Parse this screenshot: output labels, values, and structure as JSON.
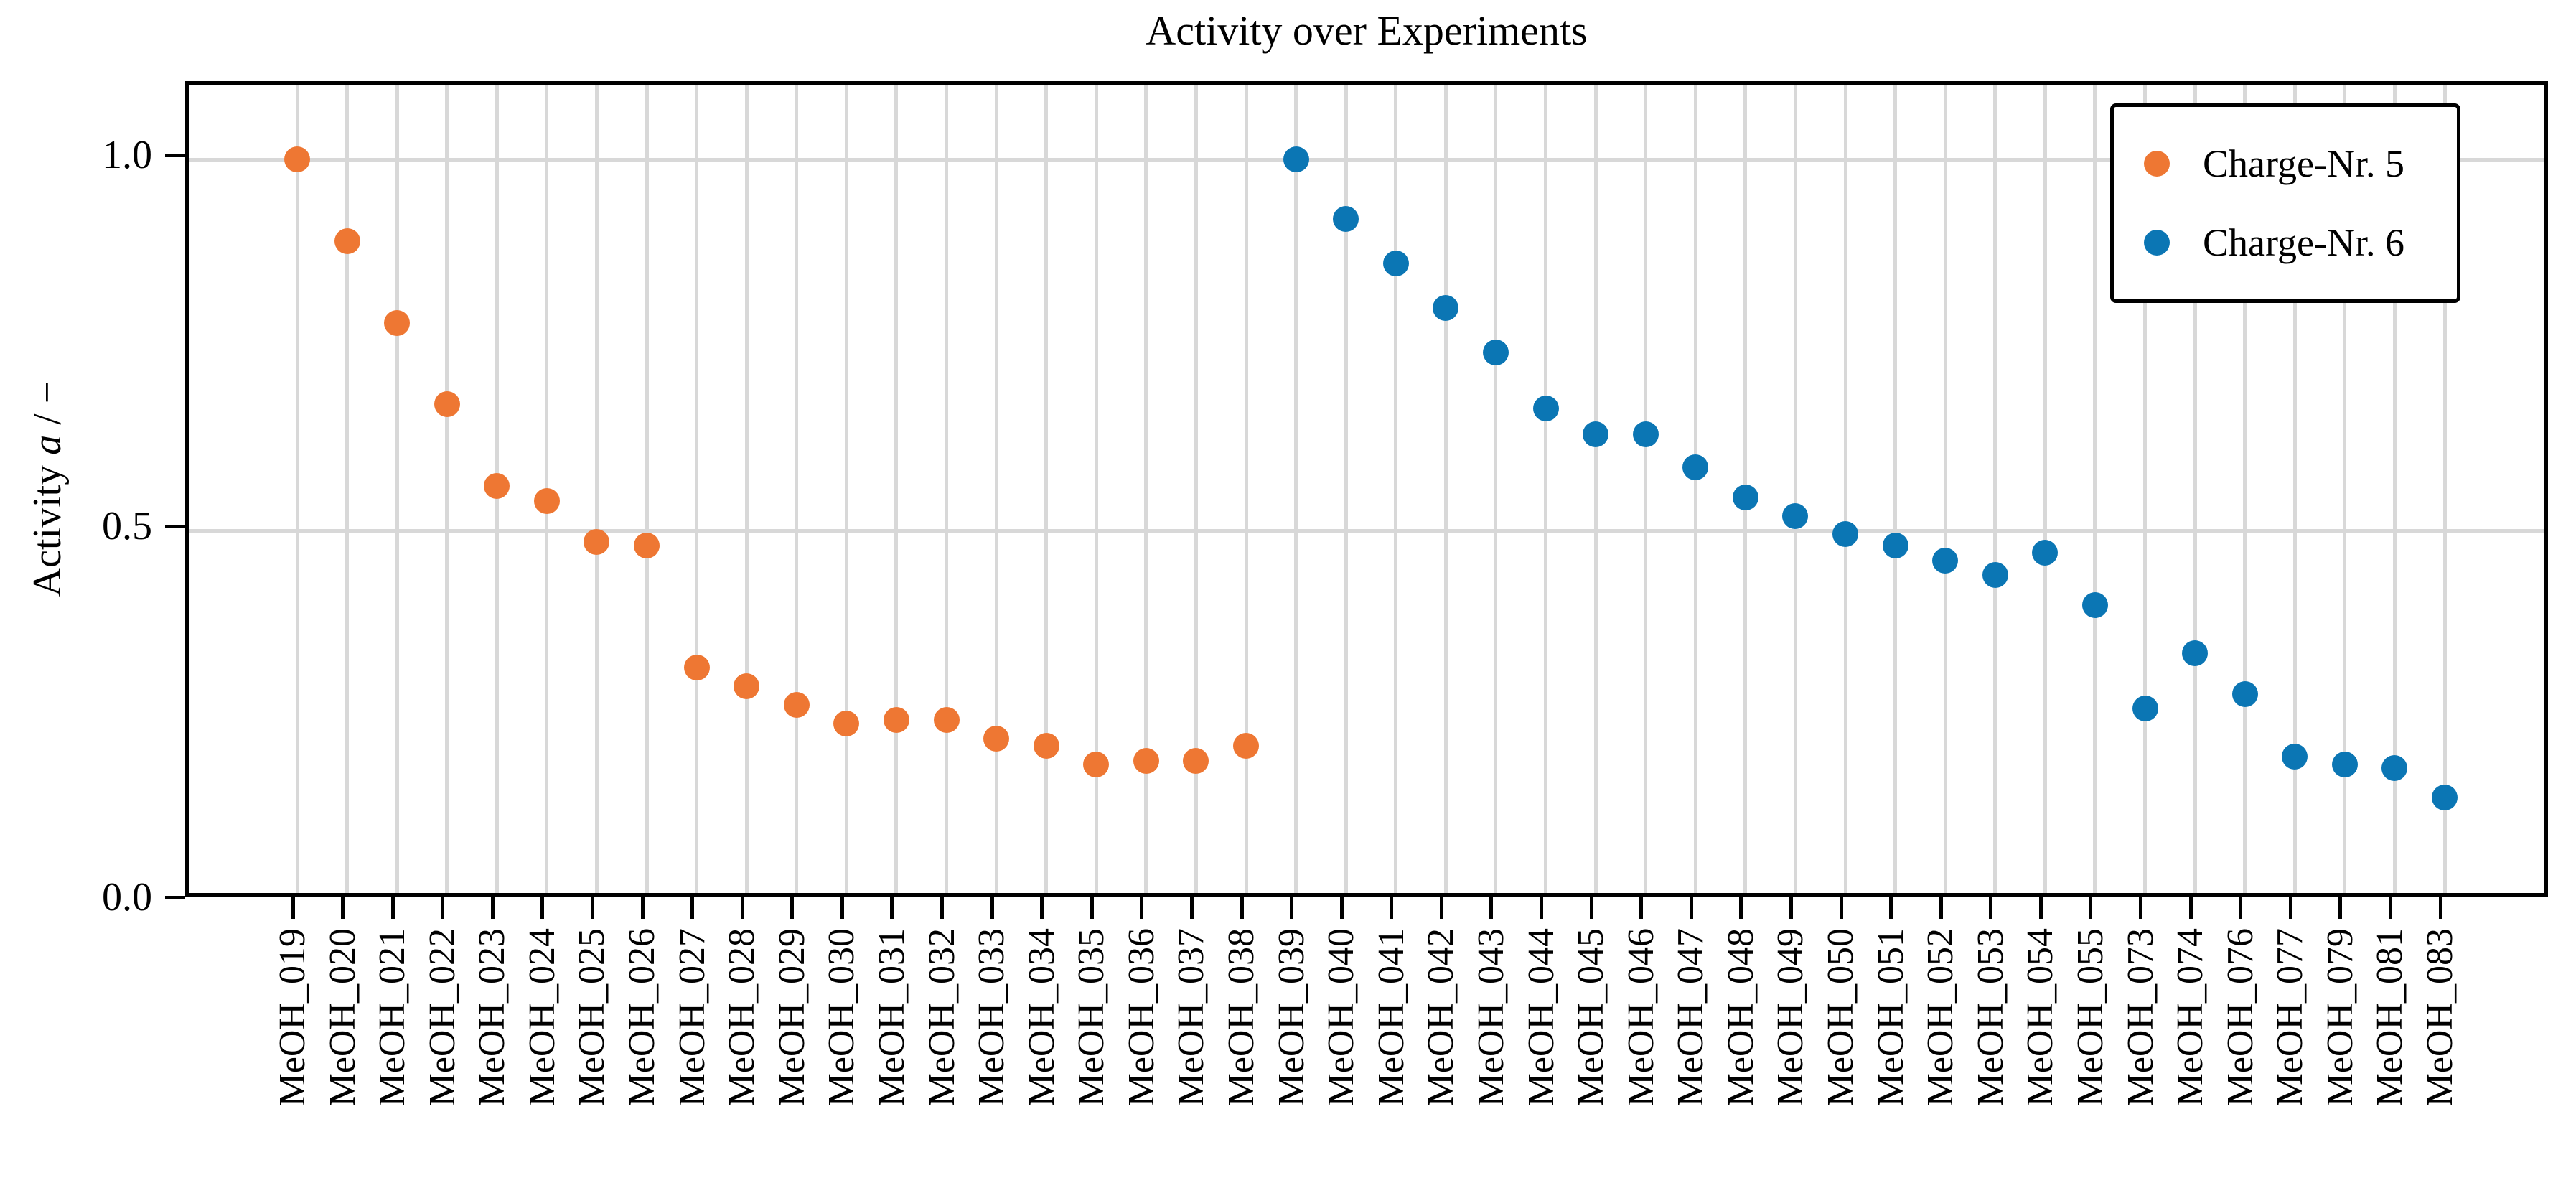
{
  "title": "Activity over Experiments",
  "y_axis": {
    "label_pre": "Activity ",
    "label_var": "a",
    "label_post": " / −",
    "ticks": [
      {
        "label": "0.0",
        "value": 0.0
      },
      {
        "label": "0.5",
        "value": 0.5
      },
      {
        "label": "1.0",
        "value": 1.0
      }
    ]
  },
  "colors": {
    "series1": "#ee7733",
    "series2": "#0b76b4",
    "grid": "#d8d8d8",
    "axis": "#000000",
    "background": "#ffffff"
  },
  "legend": {
    "items": [
      {
        "label": "Charge-Nr. 5",
        "color": "#ee7733"
      },
      {
        "label": "Charge-Nr. 6",
        "color": "#0b76b4"
      }
    ]
  },
  "chart_data": {
    "type": "scatter",
    "title": "Activity over Experiments",
    "xlabel": "",
    "ylabel": "Activity a / −",
    "ylim": [
      0.0,
      1.1
    ],
    "ytick_values": [
      0.0,
      0.5,
      1.0
    ],
    "grid": true,
    "legend_position": "upper right",
    "categories": [
      "MeOH_019",
      "MeOH_020",
      "MeOH_021",
      "MeOH_022",
      "MeOH_023",
      "MeOH_024",
      "MeOH_025",
      "MeOH_026",
      "MeOH_027",
      "MeOH_028",
      "MeOH_029",
      "MeOH_030",
      "MeOH_031",
      "MeOH_032",
      "MeOH_033",
      "MeOH_034",
      "MeOH_035",
      "MeOH_036",
      "MeOH_037",
      "MeOH_038",
      "MeOH_039",
      "MeOH_040",
      "MeOH_041",
      "MeOH_042",
      "MeOH_043",
      "MeOH_044",
      "MeOH_045",
      "MeOH_046",
      "MeOH_047",
      "MeOH_048",
      "MeOH_049",
      "MeOH_050",
      "MeOH_051",
      "MeOH_052",
      "MeOH_053",
      "MeOH_054",
      "MeOH_055",
      "MeOH_073",
      "MeOH_074",
      "MeOH_076",
      "MeOH_077",
      "MeOH_079",
      "MeOH_081",
      "MeOH_083"
    ],
    "series": [
      {
        "name": "Charge-Nr. 5",
        "color": "#ee7733",
        "values": [
          1.0,
          0.89,
          0.78,
          0.67,
          0.56,
          0.54,
          0.485,
          0.48,
          0.315,
          0.29,
          0.265,
          0.24,
          0.245,
          0.245,
          0.22,
          0.21,
          0.185,
          0.19,
          0.19,
          0.21,
          null,
          null,
          null,
          null,
          null,
          null,
          null,
          null,
          null,
          null,
          null,
          null,
          null,
          null,
          null,
          null,
          null,
          null,
          null,
          null,
          null,
          null,
          null,
          null
        ]
      },
      {
        "name": "Charge-Nr. 6",
        "color": "#0b76b4",
        "values": [
          null,
          null,
          null,
          null,
          null,
          null,
          null,
          null,
          null,
          null,
          null,
          null,
          null,
          null,
          null,
          null,
          null,
          null,
          null,
          null,
          1.0,
          0.92,
          0.86,
          0.8,
          0.74,
          0.665,
          0.63,
          0.63,
          0.585,
          0.545,
          0.52,
          0.495,
          0.48,
          0.46,
          0.44,
          0.47,
          0.4,
          0.26,
          0.335,
          0.28,
          0.195,
          0.185,
          0.18,
          0.14
        ]
      }
    ]
  }
}
